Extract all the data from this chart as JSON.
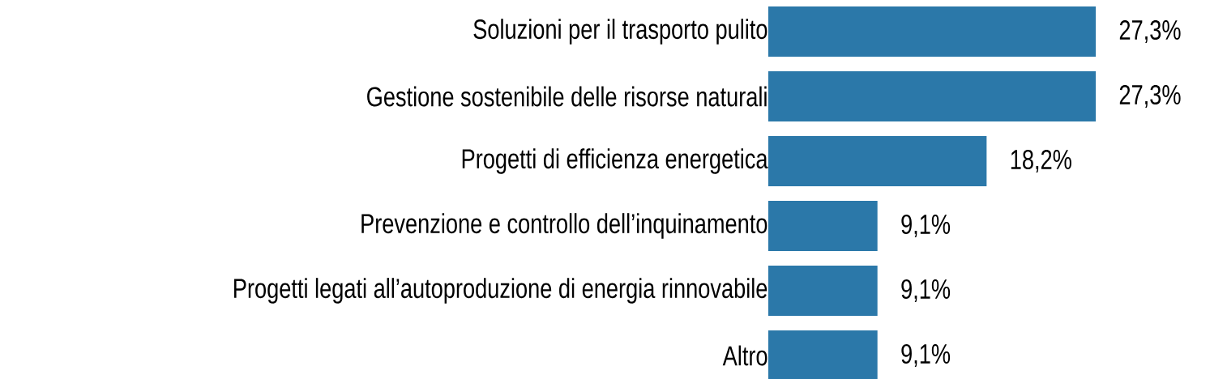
{
  "chart_data": {
    "type": "bar",
    "orientation": "horizontal",
    "categories": [
      "Soluzioni per il trasporto pulito",
      "Gestione sostenibile delle risorse naturali",
      "Progetti di efficienza energetica",
      "Prevenzione e controllo dell’inquinamento",
      "Progetti legati all’autoproduzione di energia rinnovabile",
      "Altro"
    ],
    "values": [
      27.3,
      27.3,
      18.2,
      9.1,
      9.1,
      9.1
    ],
    "value_labels": [
      "27,3%",
      "27,3%",
      "18,2%",
      "9,1%",
      "9,1%",
      "9,1%"
    ],
    "color": "#2b78a9"
  }
}
